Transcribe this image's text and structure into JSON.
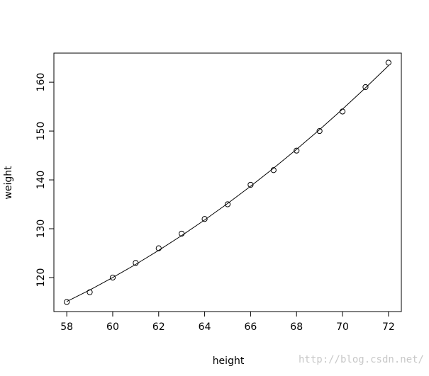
{
  "chart_data": {
    "type": "scatter",
    "x_label": "height",
    "y_label": "weight",
    "x": [
      58,
      59,
      60,
      61,
      62,
      63,
      64,
      65,
      66,
      67,
      68,
      69,
      70,
      71,
      72
    ],
    "values": [
      115,
      117,
      120,
      123,
      126,
      129,
      132,
      135,
      139,
      142,
      146,
      150,
      154,
      159,
      164
    ],
    "fitted": [
      115.09,
      117.46,
      120.0,
      122.7,
      125.57,
      128.6,
      131.8,
      135.17,
      138.7,
      142.4,
      146.26,
      150.29,
      154.49,
      158.85,
      163.38
    ],
    "color": "#000000",
    "xlim": [
      57.44,
      72.56
    ],
    "xticks": [
      58,
      60,
      62,
      64,
      66,
      68,
      70,
      72
    ],
    "ylim": [
      113.04,
      165.96
    ],
    "yticks": [
      120,
      130,
      140,
      150,
      160
    ],
    "watermark": "http://blog.csdn.net/"
  }
}
